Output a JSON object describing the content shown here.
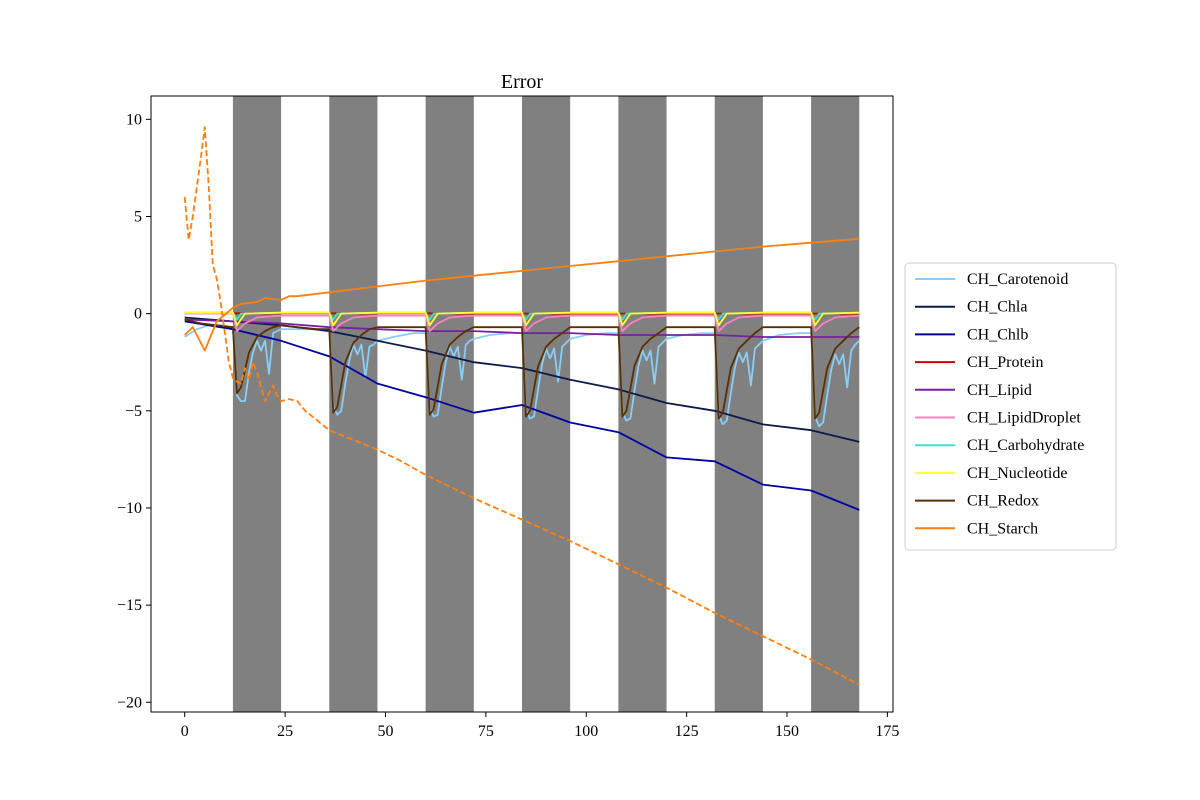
{
  "chart_data": {
    "type": "line",
    "title": "Error",
    "xlabel": "",
    "ylabel": "",
    "xlim": [
      -8.4,
      176.4
    ],
    "ylim": [
      -20.5,
      11.2
    ],
    "xticks": [
      0,
      25,
      50,
      75,
      100,
      125,
      150,
      175
    ],
    "yticks": [
      -20,
      -15,
      -10,
      -5,
      0,
      5,
      10
    ],
    "grid": false,
    "legend": {
      "placement": "outside-right"
    },
    "dark_periods": [
      [
        12,
        24
      ],
      [
        36,
        48
      ],
      [
        60,
        72
      ],
      [
        84,
        96
      ],
      [
        108,
        120
      ],
      [
        132,
        144
      ],
      [
        156,
        168
      ]
    ],
    "shade_color": "#808080",
    "series": [
      {
        "name": "CH_Carotenoid",
        "color": "#87cefa",
        "style": "solid",
        "x": [
          0,
          3,
          6,
          9,
          12,
          13,
          14,
          15,
          16,
          17,
          18,
          19,
          20,
          21,
          22,
          23,
          24,
          28,
          33,
          36,
          37,
          38,
          39,
          40,
          41,
          42,
          43,
          44,
          45,
          46,
          47,
          48,
          52,
          57,
          60,
          61,
          62,
          63,
          64,
          65,
          66,
          67,
          68,
          69,
          70,
          71,
          72,
          76,
          81,
          84,
          85,
          86,
          87,
          88,
          89,
          90,
          91,
          92,
          93,
          94,
          95,
          96,
          100,
          105,
          108,
          109,
          110,
          111,
          112,
          113,
          114,
          115,
          116,
          117,
          118,
          119,
          120,
          124,
          129,
          132,
          133,
          134,
          135,
          136,
          137,
          138,
          139,
          140,
          141,
          142,
          143,
          144,
          148,
          153,
          156,
          157,
          158,
          159,
          160,
          161,
          162,
          163,
          164,
          165,
          166,
          167,
          168
        ],
        "y": [
          -1.2,
          -0.8,
          -0.6,
          -0.6,
          -0.7,
          -4.2,
          -4.5,
          -4.5,
          -3.0,
          -2.0,
          -1.4,
          -1.9,
          -1.4,
          -3.1,
          -1.0,
          -0.9,
          -0.8,
          -0.8,
          -0.8,
          -0.8,
          -4.8,
          -5.2,
          -5.0,
          -3.6,
          -2.4,
          -1.6,
          -2.1,
          -1.6,
          -3.3,
          -1.7,
          -1.6,
          -1.4,
          -1.2,
          -1.0,
          -1.0,
          -4.9,
          -5.3,
          -5.2,
          -3.8,
          -2.5,
          -1.7,
          -2.2,
          -1.7,
          -3.4,
          -1.6,
          -1.4,
          -1.3,
          -1.1,
          -1.0,
          -1.0,
          -5.0,
          -5.4,
          -5.3,
          -3.9,
          -2.6,
          -1.8,
          -2.3,
          -1.8,
          -3.5,
          -1.7,
          -1.5,
          -1.3,
          -1.1,
          -1.0,
          -1.0,
          -5.1,
          -5.5,
          -5.4,
          -4.0,
          -2.7,
          -1.9,
          -2.4,
          -1.9,
          -3.6,
          -1.7,
          -1.5,
          -1.3,
          -1.1,
          -1.0,
          -1.0,
          -5.2,
          -5.7,
          -5.5,
          -4.1,
          -2.8,
          -2.0,
          -2.5,
          -2.0,
          -3.7,
          -1.8,
          -1.6,
          -1.4,
          -1.1,
          -1.0,
          -1.0,
          -5.3,
          -5.8,
          -5.6,
          -4.2,
          -2.9,
          -2.1,
          -2.6,
          -2.1,
          -3.8,
          -1.9,
          -1.6,
          -1.4
        ]
      },
      {
        "name": "CH_Chla",
        "color": "#0a1a4a",
        "style": "solid",
        "x": [
          0,
          12,
          24,
          36,
          48,
          60,
          72,
          84,
          96,
          108,
          120,
          132,
          144,
          156,
          168
        ],
        "y": [
          -0.2,
          -0.4,
          -0.6,
          -0.9,
          -1.4,
          -1.9,
          -2.5,
          -2.8,
          -3.4,
          -3.9,
          -4.6,
          -5.0,
          -5.7,
          -6.0,
          -6.6
        ]
      },
      {
        "name": "CH_Chlb",
        "color": "#0000a0",
        "style": "solid",
        "x": [
          0,
          12,
          24,
          36,
          48,
          60,
          72,
          84,
          96,
          108,
          120,
          132,
          144,
          156,
          168
        ],
        "y": [
          -0.4,
          -0.8,
          -1.4,
          -2.2,
          -3.6,
          -4.3,
          -5.1,
          -4.7,
          -5.6,
          -6.1,
          -7.4,
          -7.6,
          -8.8,
          -9.1,
          -10.1
        ]
      },
      {
        "name": "CH_Protein",
        "color": "#cc0000",
        "style": "solid",
        "x": [
          0,
          12,
          24,
          36,
          48,
          60,
          72,
          84,
          96,
          108,
          120,
          132,
          144,
          156,
          168
        ],
        "y": [
          0.03,
          0.02,
          0.02,
          0.01,
          0.01,
          0.01,
          0.0,
          0.0,
          0.0,
          0.0,
          0.0,
          0.0,
          0.0,
          0.0,
          0.0
        ]
      },
      {
        "name": "CH_Lipid",
        "color": "#7b1fa2",
        "style": "solid",
        "x": [
          0,
          12,
          24,
          36,
          48,
          60,
          72,
          84,
          96,
          108,
          120,
          132,
          144,
          156,
          168
        ],
        "y": [
          -0.3,
          -0.4,
          -0.5,
          -0.7,
          -0.8,
          -0.9,
          -0.9,
          -1.0,
          -1.0,
          -1.1,
          -1.1,
          -1.1,
          -1.2,
          -1.2,
          -1.2
        ]
      },
      {
        "name": "CH_LipidDroplet",
        "color": "#ff80c0",
        "style": "solid",
        "x": [
          0,
          12,
          13,
          15,
          18,
          24,
          36,
          37,
          39,
          42,
          48,
          60,
          61,
          63,
          66,
          72,
          84,
          85,
          87,
          90,
          96,
          108,
          109,
          111,
          114,
          120,
          132,
          133,
          135,
          138,
          144,
          156,
          157,
          159,
          162,
          168
        ],
        "y": [
          0.0,
          0.0,
          -0.9,
          -0.5,
          -0.2,
          -0.1,
          -0.1,
          -0.9,
          -0.5,
          -0.2,
          -0.1,
          -0.1,
          -0.9,
          -0.5,
          -0.2,
          -0.1,
          -0.1,
          -0.9,
          -0.5,
          -0.2,
          -0.1,
          -0.1,
          -0.9,
          -0.5,
          -0.2,
          -0.1,
          -0.1,
          -0.9,
          -0.5,
          -0.2,
          -0.1,
          -0.1,
          -0.9,
          -0.5,
          -0.2,
          -0.1
        ]
      },
      {
        "name": "CH_Carbohydrate",
        "color": "#40e0d0",
        "style": "solid",
        "x": [
          0,
          12,
          13,
          14,
          24,
          36,
          37,
          38,
          48,
          60,
          61,
          62,
          72,
          84,
          85,
          86,
          96,
          108,
          109,
          110,
          120,
          132,
          133,
          134,
          144,
          156,
          157,
          158,
          168
        ],
        "y": [
          0.05,
          0.05,
          -0.3,
          0.0,
          0.05,
          0.05,
          -0.3,
          0.0,
          0.05,
          0.05,
          -0.3,
          0.0,
          0.05,
          0.05,
          -0.3,
          0.0,
          0.05,
          0.05,
          -0.3,
          0.0,
          0.05,
          0.05,
          -0.3,
          0.0,
          0.05,
          0.05,
          -0.3,
          0.0,
          0.05
        ]
      },
      {
        "name": "CH_Nucleotide",
        "color": "#ffff33",
        "style": "solid",
        "x": [
          0,
          12,
          13,
          14,
          15,
          24,
          36,
          37,
          38,
          39,
          48,
          60,
          61,
          62,
          63,
          72,
          84,
          85,
          86,
          87,
          96,
          108,
          109,
          110,
          111,
          120,
          132,
          133,
          134,
          135,
          144,
          156,
          157,
          158,
          159,
          168
        ],
        "y": [
          0.05,
          0.05,
          -0.6,
          -0.3,
          0.0,
          0.05,
          0.05,
          -0.6,
          -0.3,
          0.0,
          0.05,
          0.05,
          -0.6,
          -0.3,
          0.0,
          0.05,
          0.05,
          -0.6,
          -0.3,
          0.0,
          0.05,
          0.05,
          -0.6,
          -0.3,
          0.0,
          0.05,
          0.05,
          -0.6,
          -0.3,
          0.0,
          0.05,
          0.05,
          -0.6,
          -0.3,
          0.0,
          0.05
        ]
      },
      {
        "name": "CH_Redox",
        "color": "#5a3000",
        "style": "solid",
        "x": [
          0,
          4,
          8,
          12,
          13,
          14,
          16,
          18,
          20,
          22,
          24,
          28,
          33,
          36,
          37,
          38,
          40,
          42,
          44,
          46,
          48,
          52,
          57,
          60,
          61,
          62,
          64,
          66,
          68,
          70,
          72,
          76,
          81,
          84,
          85,
          86,
          88,
          90,
          92,
          94,
          96,
          100,
          105,
          108,
          109,
          110,
          112,
          114,
          116,
          118,
          120,
          124,
          129,
          132,
          133,
          134,
          136,
          138,
          140,
          142,
          144,
          148,
          153,
          156,
          157,
          158,
          160,
          162,
          164,
          166,
          168
        ],
        "y": [
          -0.3,
          -0.5,
          -0.6,
          -0.7,
          -4.1,
          -3.8,
          -2.0,
          -1.2,
          -0.9,
          -0.7,
          -0.6,
          -0.7,
          -0.8,
          -0.8,
          -5.1,
          -4.8,
          -2.5,
          -1.5,
          -1.1,
          -0.8,
          -0.7,
          -0.7,
          -0.7,
          -0.7,
          -5.2,
          -4.9,
          -2.6,
          -1.6,
          -1.2,
          -0.9,
          -0.7,
          -0.7,
          -0.7,
          -0.7,
          -5.3,
          -5.0,
          -2.7,
          -1.7,
          -1.3,
          -1.0,
          -0.7,
          -0.7,
          -0.7,
          -0.7,
          -5.3,
          -5.0,
          -2.7,
          -1.7,
          -1.3,
          -1.0,
          -0.7,
          -0.7,
          -0.7,
          -0.7,
          -5.4,
          -5.1,
          -2.8,
          -1.8,
          -1.4,
          -1.0,
          -0.7,
          -0.7,
          -0.7,
          -0.7,
          -5.4,
          -5.1,
          -2.8,
          -1.8,
          -1.4,
          -1.0,
          -0.7
        ]
      },
      {
        "name": "CH_Starch",
        "color": "#ff7f0e",
        "style": "solid",
        "x": [
          0,
          2,
          5,
          8,
          12,
          14,
          18,
          20,
          24,
          26,
          28,
          36,
          48,
          60,
          72,
          84,
          96,
          108,
          120,
          132,
          144,
          156,
          168
        ],
        "y": [
          -1.1,
          -0.7,
          -1.9,
          -0.4,
          0.3,
          0.5,
          0.6,
          0.8,
          0.7,
          0.9,
          0.9,
          1.1,
          1.4,
          1.7,
          1.95,
          2.2,
          2.45,
          2.7,
          2.95,
          3.2,
          3.45,
          3.65,
          3.85
        ]
      },
      {
        "name": "",
        "color": "#ff7f0e",
        "style": "dashed",
        "x": [
          0,
          1,
          2,
          3,
          4,
          5,
          6,
          7,
          8,
          9,
          10,
          11,
          12,
          13,
          14,
          15,
          16,
          17,
          18,
          20,
          22,
          23,
          24,
          26,
          28,
          30,
          36,
          42,
          48,
          54,
          60,
          72,
          84,
          96,
          108,
          120,
          132,
          144,
          156,
          168
        ],
        "y": [
          6.0,
          3.8,
          5.0,
          6.5,
          8.0,
          9.6,
          6.5,
          2.5,
          1.8,
          0.5,
          -1.0,
          -2.5,
          -3.3,
          -3.5,
          -3.6,
          -2.8,
          -3.4,
          -2.5,
          -3.0,
          -4.5,
          -3.7,
          -4.2,
          -4.5,
          -4.4,
          -4.5,
          -5.0,
          -6.0,
          -6.5,
          -7.0,
          -7.6,
          -8.3,
          -9.5,
          -10.6,
          -11.7,
          -12.9,
          -14.1,
          -15.4,
          -16.6,
          -17.8,
          -19.1
        ]
      }
    ]
  }
}
